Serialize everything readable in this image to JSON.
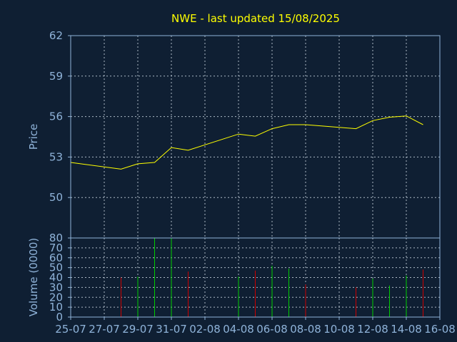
{
  "chart_data": {
    "type": "line",
    "title": "NWE - last updated 15/08/2025",
    "x_tick_labels": [
      "25-07",
      "27-07",
      "29-07",
      "31-07",
      "02-08",
      "04-08",
      "06-08",
      "08-08",
      "10-08",
      "12-08",
      "14-08",
      "16-08"
    ],
    "price_panel": {
      "ylabel": "Price",
      "ylim": [
        47,
        62
      ],
      "yticks": [
        50,
        53,
        56,
        59,
        62
      ],
      "series": [
        {
          "type": "line",
          "color": "#ffff00",
          "x": [
            "2025-07-25",
            "2025-07-28",
            "2025-07-29",
            "2025-07-30",
            "2025-07-31",
            "2025-08-01",
            "2025-08-04",
            "2025-08-05",
            "2025-08-06",
            "2025-08-07",
            "2025-08-08",
            "2025-08-11",
            "2025-08-12",
            "2025-08-13",
            "2025-08-14",
            "2025-08-15"
          ],
          "values": [
            52.6,
            52.1,
            52.5,
            52.6,
            53.7,
            53.5,
            54.7,
            54.55,
            55.1,
            55.4,
            55.4,
            55.1,
            55.7,
            55.95,
            56.05,
            55.4
          ]
        }
      ]
    },
    "volume_panel": {
      "ylabel": "Volume (0000)",
      "ylim": [
        0,
        80
      ],
      "yticks": [
        0,
        10,
        20,
        30,
        40,
        50,
        60,
        70,
        80
      ],
      "series": [
        {
          "type": "bar",
          "x": [
            "2025-07-28",
            "2025-07-29",
            "2025-07-30",
            "2025-07-31",
            "2025-08-01",
            "2025-08-04",
            "2025-08-05",
            "2025-08-06",
            "2025-08-07",
            "2025-08-08",
            "2025-08-11",
            "2025-08-12",
            "2025-08-13",
            "2025-08-14",
            "2025-08-15"
          ],
          "values": [
            40,
            41,
            80,
            80,
            46,
            41,
            47,
            52,
            49,
            33,
            30,
            39,
            32,
            42,
            48
          ],
          "directions": [
            "down",
            "up",
            "up",
            "up",
            "down",
            "up",
            "down",
            "up",
            "up",
            "down",
            "down",
            "up",
            "up",
            "up",
            "down"
          ]
        }
      ]
    },
    "colors": {
      "up": "#00cc00",
      "down": "#cc0000",
      "line": "#ffff00",
      "background": "#0f1f33",
      "axis": "#8fb3d9",
      "title": "#ffff00"
    },
    "grid": true
  }
}
